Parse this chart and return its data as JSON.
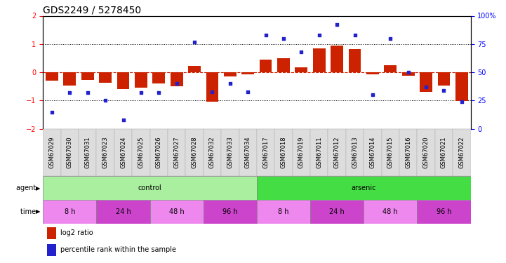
{
  "title": "GDS2249 / 5278450",
  "samples": [
    "GSM67029",
    "GSM67030",
    "GSM67031",
    "GSM67023",
    "GSM67024",
    "GSM67025",
    "GSM67026",
    "GSM67027",
    "GSM67028",
    "GSM67032",
    "GSM67033",
    "GSM67034",
    "GSM67017",
    "GSM67018",
    "GSM67019",
    "GSM67011",
    "GSM67012",
    "GSM67013",
    "GSM67014",
    "GSM67015",
    "GSM67016",
    "GSM67020",
    "GSM67021",
    "GSM67022"
  ],
  "log2_ratio": [
    -0.3,
    -0.46,
    -0.27,
    -0.37,
    -0.6,
    -0.55,
    -0.4,
    -0.5,
    0.22,
    -1.03,
    -0.15,
    -0.08,
    0.46,
    0.5,
    0.18,
    0.85,
    0.95,
    0.83,
    -0.08,
    0.24,
    -0.12,
    -0.68,
    -0.48,
    -1.02
  ],
  "percentile": [
    15,
    32,
    32,
    25,
    8,
    32,
    32,
    40,
    77,
    33,
    40,
    33,
    83,
    80,
    68,
    83,
    92,
    83,
    30,
    80,
    50,
    37,
    34,
    24
  ],
  "agent_groups": [
    {
      "label": "control",
      "start": 0,
      "end": 12,
      "color": "#AAEEA0"
    },
    {
      "label": "arsenic",
      "start": 12,
      "end": 24,
      "color": "#44DD44"
    }
  ],
  "time_groups": [
    {
      "label": "8 h",
      "start": 0,
      "end": 3,
      "color": "#EE88EE"
    },
    {
      "label": "24 h",
      "start": 3,
      "end": 6,
      "color": "#CC44CC"
    },
    {
      "label": "48 h",
      "start": 6,
      "end": 9,
      "color": "#EE88EE"
    },
    {
      "label": "96 h",
      "start": 9,
      "end": 12,
      "color": "#CC44CC"
    },
    {
      "label": "8 h",
      "start": 12,
      "end": 15,
      "color": "#EE88EE"
    },
    {
      "label": "24 h",
      "start": 15,
      "end": 18,
      "color": "#CC44CC"
    },
    {
      "label": "48 h",
      "start": 18,
      "end": 21,
      "color": "#EE88EE"
    },
    {
      "label": "96 h",
      "start": 21,
      "end": 24,
      "color": "#CC44CC"
    }
  ],
  "ylim_left": [
    -2,
    2
  ],
  "ylim_right": [
    0,
    100
  ],
  "bar_color": "#CC2200",
  "dot_color": "#2222CC",
  "title_fontsize": 10,
  "tick_fontsize": 7,
  "sample_fontsize": 6,
  "label_fontsize": 8
}
